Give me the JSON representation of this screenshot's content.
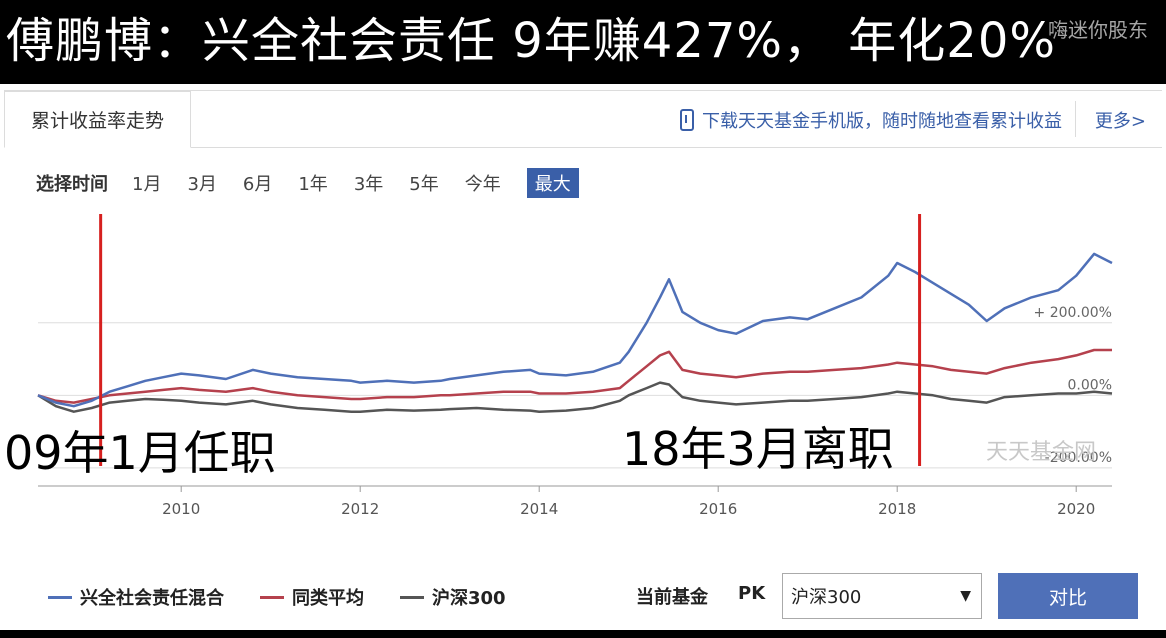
{
  "banner": {
    "title": "傅鹏博：兴全社会责任 9年赚427%， 年化20%",
    "watermark": "嗨迷你股东"
  },
  "tabs": {
    "active": "累计收益率走势",
    "promo": "下载天天基金手机版，随时随地查看累计收益",
    "more": "更多>"
  },
  "range": {
    "label": "选择时间",
    "options": [
      "1月",
      "3月",
      "6月",
      "1年",
      "3年",
      "5年",
      "今年",
      "最大"
    ],
    "selected": "最大"
  },
  "annotations": {
    "start": "09年1月任职",
    "end": "18年3月离职"
  },
  "logo": "天天基金网",
  "legend": [
    {
      "name": "兴全社会责任混合",
      "color": "#4f70b8"
    },
    {
      "name": "同类平均",
      "color": "#b5414d"
    },
    {
      "name": "沪深300",
      "color": "#555555"
    }
  ],
  "compare": {
    "label": "当前基金",
    "pk": "PK",
    "selected": "沪深300",
    "button": "对比"
  },
  "colors": {
    "fund": "#4f70b8",
    "category": "#b5414d",
    "index": "#555555",
    "marker": "#d6201f",
    "accent": "#3a5fa8"
  },
  "chart_data": {
    "type": "line",
    "xlabel": "",
    "ylabel": "",
    "xlim": [
      2008.4,
      2020.4
    ],
    "ylim": [
      -250,
      500
    ],
    "x_ticks": [
      2010,
      2012,
      2014,
      2016,
      2018,
      2020
    ],
    "y_ticks": [
      {
        "value": 200,
        "label": "+ 200.00%"
      },
      {
        "value": 0,
        "label": "0.00%"
      },
      {
        "value": -200,
        "label": "-200.00%"
      }
    ],
    "grid": true,
    "markers": [
      2009.1,
      2018.25
    ],
    "series": [
      {
        "name": "兴全社会责任混合",
        "x": [
          2008.4,
          2008.6,
          2008.8,
          2009.0,
          2009.2,
          2009.4,
          2009.6,
          2009.8,
          2010.0,
          2010.2,
          2010.5,
          2010.8,
          2011.0,
          2011.3,
          2011.6,
          2011.9,
          2012.0,
          2012.3,
          2012.6,
          2012.9,
          2013.0,
          2013.3,
          2013.6,
          2013.9,
          2014.0,
          2014.3,
          2014.6,
          2014.9,
          2015.0,
          2015.2,
          2015.35,
          2015.45,
          2015.6,
          2015.8,
          2016.0,
          2016.2,
          2016.5,
          2016.8,
          2017.0,
          2017.3,
          2017.6,
          2017.9,
          2018.0,
          2018.2,
          2018.4,
          2018.6,
          2018.8,
          2019.0,
          2019.2,
          2019.5,
          2019.8,
          2020.0,
          2020.2,
          2020.4
        ],
        "y": [
          0,
          -20,
          -30,
          -15,
          10,
          25,
          40,
          50,
          60,
          55,
          45,
          70,
          60,
          50,
          45,
          40,
          35,
          40,
          35,
          40,
          45,
          55,
          65,
          70,
          60,
          55,
          65,
          90,
          120,
          200,
          270,
          320,
          230,
          200,
          180,
          170,
          205,
          215,
          210,
          240,
          270,
          330,
          365,
          340,
          310,
          280,
          250,
          205,
          240,
          270,
          290,
          330,
          390,
          365
        ]
      },
      {
        "name": "同类平均",
        "x": [
          2008.4,
          2008.6,
          2008.8,
          2009.0,
          2009.2,
          2009.4,
          2009.6,
          2009.8,
          2010.0,
          2010.2,
          2010.5,
          2010.8,
          2011.0,
          2011.3,
          2011.6,
          2011.9,
          2012.0,
          2012.3,
          2012.6,
          2012.9,
          2013.0,
          2013.3,
          2013.6,
          2013.9,
          2014.0,
          2014.3,
          2014.6,
          2014.9,
          2015.0,
          2015.2,
          2015.35,
          2015.45,
          2015.6,
          2015.8,
          2016.0,
          2016.2,
          2016.5,
          2016.8,
          2017.0,
          2017.3,
          2017.6,
          2017.9,
          2018.0,
          2018.2,
          2018.4,
          2018.6,
          2018.8,
          2019.0,
          2019.2,
          2019.5,
          2019.8,
          2020.0,
          2020.2,
          2020.4
        ],
        "y": [
          0,
          -15,
          -20,
          -10,
          0,
          5,
          10,
          15,
          20,
          15,
          10,
          20,
          10,
          0,
          -5,
          -10,
          -10,
          -5,
          -5,
          0,
          0,
          5,
          10,
          10,
          5,
          5,
          10,
          20,
          40,
          80,
          110,
          120,
          70,
          60,
          55,
          50,
          60,
          65,
          65,
          70,
          75,
          85,
          90,
          85,
          80,
          70,
          65,
          60,
          75,
          90,
          100,
          110,
          125,
          125
        ]
      },
      {
        "name": "沪深300",
        "x": [
          2008.4,
          2008.6,
          2008.8,
          2009.0,
          2009.2,
          2009.4,
          2009.6,
          2009.8,
          2010.0,
          2010.2,
          2010.5,
          2010.8,
          2011.0,
          2011.3,
          2011.6,
          2011.9,
          2012.0,
          2012.3,
          2012.6,
          2012.9,
          2013.0,
          2013.3,
          2013.6,
          2013.9,
          2014.0,
          2014.3,
          2014.6,
          2014.9,
          2015.0,
          2015.2,
          2015.35,
          2015.45,
          2015.6,
          2015.8,
          2016.0,
          2016.2,
          2016.5,
          2016.8,
          2017.0,
          2017.3,
          2017.6,
          2017.9,
          2018.0,
          2018.2,
          2018.4,
          2018.6,
          2018.8,
          2019.0,
          2019.2,
          2019.5,
          2019.8,
          2020.0,
          2020.2,
          2020.4
        ],
        "y": [
          0,
          -30,
          -45,
          -35,
          -20,
          -15,
          -10,
          -12,
          -15,
          -20,
          -25,
          -15,
          -25,
          -35,
          -40,
          -45,
          -45,
          -40,
          -42,
          -40,
          -38,
          -35,
          -40,
          -42,
          -45,
          -42,
          -35,
          -15,
          0,
          20,
          35,
          30,
          -5,
          -15,
          -20,
          -25,
          -20,
          -15,
          -15,
          -10,
          -5,
          5,
          10,
          5,
          0,
          -10,
          -15,
          -20,
          -5,
          0,
          5,
          5,
          10,
          5
        ]
      }
    ]
  }
}
